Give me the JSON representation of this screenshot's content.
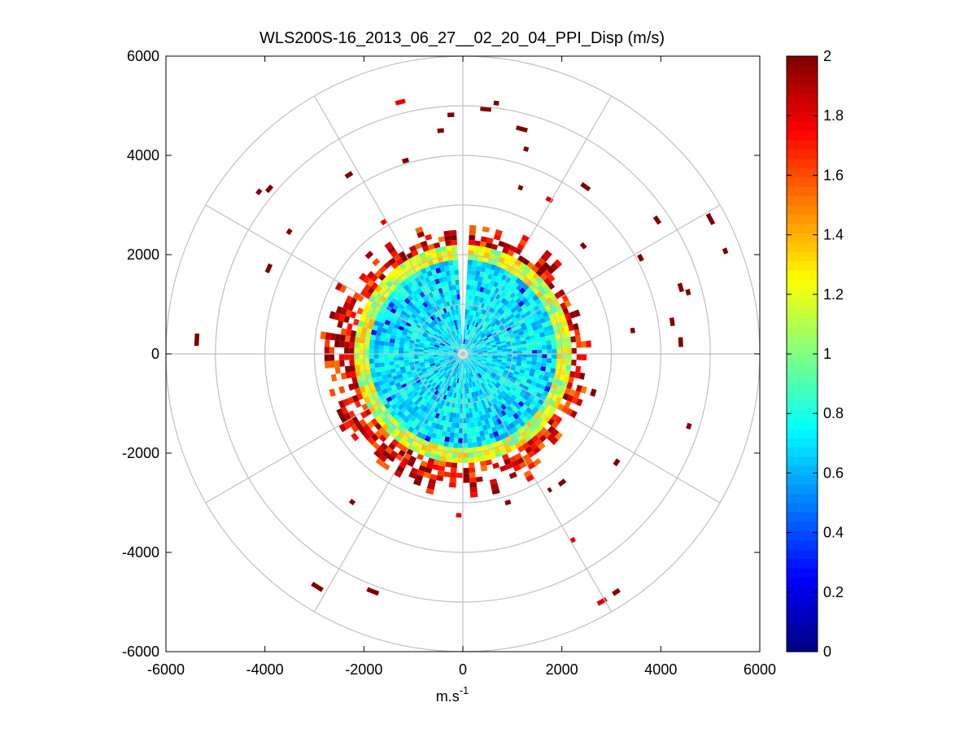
{
  "chart_data": {
    "type": "heatmap",
    "subtype": "polar-ppi",
    "title": "WLS200S-16_2013_06_27__02_20_04_PPI_Disp (m/s)",
    "xlabel": "m.s",
    "xlabel_sup": "-1",
    "ylabel": "",
    "xlim": [
      -6000,
      6000
    ],
    "ylim": [
      -6000,
      6000
    ],
    "x_ticks": [
      "-6000",
      "-4000",
      "-2000",
      "0",
      "2000",
      "4000",
      "6000"
    ],
    "y_ticks": [
      "6000",
      "4000",
      "2000",
      "0",
      "-2000",
      "-4000",
      "-6000"
    ],
    "colorbar": {
      "colormap": "jet",
      "range": [
        0,
        2
      ],
      "ticks": [
        "2",
        "1.8",
        "1.6",
        "1.4",
        "1.2",
        "1",
        "0.8",
        "0.6",
        "0.4",
        "0.2",
        "0"
      ]
    },
    "polar_grid": {
      "ring_radii": [
        1000,
        2000,
        3000,
        4000,
        5000,
        6000
      ],
      "spoke_angles_deg": [
        0,
        30,
        60,
        90,
        120,
        150,
        180,
        210,
        240,
        270,
        300,
        330
      ],
      "grid": true
    },
    "data_summary": {
      "core_radius": 2000,
      "core_value_approx": 0.7,
      "edge_ring_radius_range": [
        2000,
        2800
      ],
      "edge_value_approx": 1.9,
      "scattered_far_returns_value": 2.0,
      "missing_sector_azimuth_deg": [
        -3,
        3
      ]
    }
  }
}
